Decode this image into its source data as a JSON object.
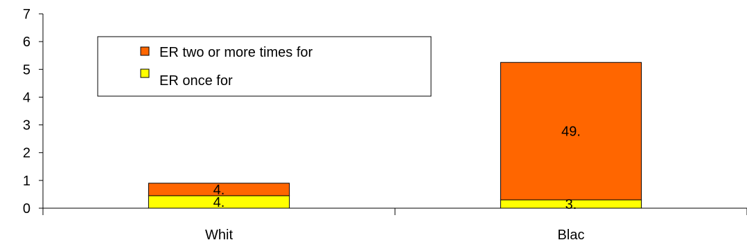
{
  "chart_data": {
    "type": "bar",
    "stacked": true,
    "categories": [
      "Whit",
      "Blac"
    ],
    "series": [
      {
        "name": "ER once for",
        "values": [
          0.45,
          0.3
        ],
        "labels": [
          "4.",
          "3."
        ],
        "color": "#FFFF00"
      },
      {
        "name": "ER two or more times for",
        "values": [
          0.45,
          4.95
        ],
        "labels": [
          "4.",
          "49."
        ],
        "color": "#FF6600"
      }
    ],
    "ylim": [
      0,
      7
    ],
    "yticks": [
      "0",
      "1",
      "2",
      "3",
      "4",
      "5",
      "6",
      "7"
    ],
    "grid": false,
    "legend": {
      "placement": "top-left",
      "entries": [
        "ER two or more times for",
        "ER once for"
      ]
    }
  }
}
